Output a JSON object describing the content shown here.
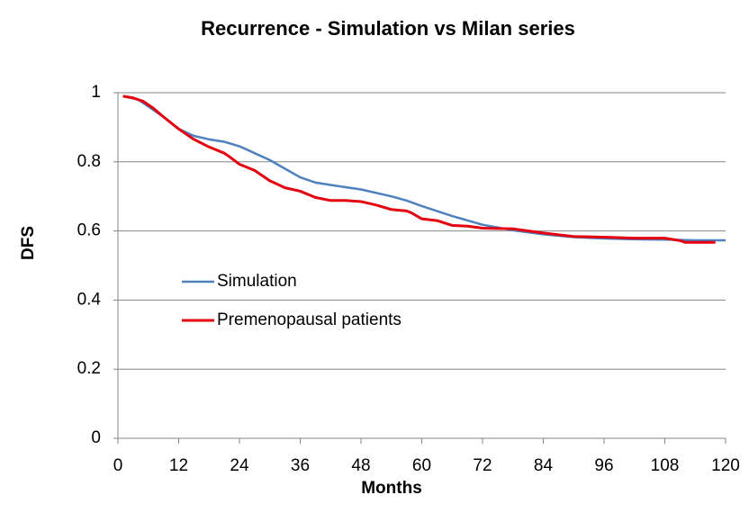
{
  "chart_data": {
    "type": "line",
    "title": "Recurrence - Simulation vs Milan series",
    "x_label": "Months",
    "y_label": "DFS",
    "xlim": [
      0,
      120
    ],
    "xticks": [
      0,
      12,
      24,
      36,
      48,
      60,
      72,
      84,
      96,
      108,
      120
    ],
    "ylim": [
      0,
      1
    ],
    "yticks": [
      0,
      0.2,
      0.4,
      0.6,
      0.8,
      1
    ],
    "grid": true,
    "legend": "left",
    "series": [
      {
        "name": "Simulation",
        "color": "#4f81bd",
        "width": 2.5,
        "x": [
          1,
          4,
          6,
          9,
          12,
          15,
          18,
          21,
          24,
          27,
          30,
          33,
          36,
          39,
          42,
          48,
          54,
          57,
          60,
          66,
          72,
          78,
          84,
          90,
          96,
          102,
          108,
          114,
          120
        ],
        "values": [
          0.99,
          0.98,
          0.96,
          0.93,
          0.895,
          0.875,
          0.865,
          0.858,
          0.845,
          0.825,
          0.805,
          0.78,
          0.755,
          0.74,
          0.733,
          0.72,
          0.7,
          0.688,
          0.672,
          0.643,
          0.618,
          0.602,
          0.59,
          0.582,
          0.578,
          0.576,
          0.575,
          0.573,
          0.573
        ]
      },
      {
        "name": "Premenopausal patients",
        "color": "#e3000f",
        "width": 3,
        "x": [
          1,
          3,
          5,
          7,
          9,
          12,
          15,
          18,
          21,
          22,
          24,
          27,
          30,
          33,
          36,
          39,
          42,
          45,
          48,
          51,
          54,
          57,
          58,
          60,
          63,
          66,
          69,
          72,
          78,
          84,
          90,
          96,
          102,
          108,
          111,
          112,
          118
        ],
        "values": [
          0.99,
          0.985,
          0.975,
          0.955,
          0.93,
          0.895,
          0.865,
          0.843,
          0.825,
          0.815,
          0.793,
          0.775,
          0.745,
          0.725,
          0.715,
          0.697,
          0.688,
          0.688,
          0.685,
          0.675,
          0.662,
          0.658,
          0.652,
          0.635,
          0.63,
          0.616,
          0.614,
          0.608,
          0.606,
          0.594,
          0.584,
          0.582,
          0.579,
          0.579,
          0.572,
          0.567,
          0.567
        ]
      }
    ]
  }
}
